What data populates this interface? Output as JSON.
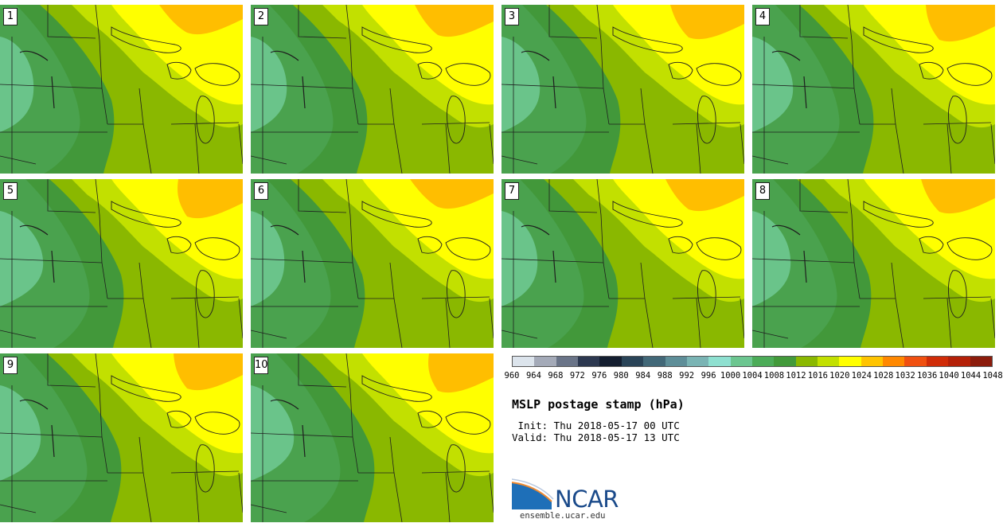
{
  "panels": [
    "1",
    "2",
    "3",
    "4",
    "5",
    "6",
    "7",
    "8",
    "9",
    "10"
  ],
  "colorbar": {
    "levels": [
      "960",
      "964",
      "968",
      "972",
      "976",
      "980",
      "984",
      "988",
      "992",
      "996",
      "1000",
      "1004",
      "1008",
      "1012",
      "1016",
      "1020",
      "1024",
      "1028",
      "1032",
      "1036",
      "1040",
      "1044",
      "1048"
    ],
    "colors": [
      "#dce4ec",
      "#a4aab8",
      "#6a7488",
      "#2c3850",
      "#141e30",
      "#2a4458",
      "#426878",
      "#5e8e98",
      "#7ab4b4",
      "#8ee0d0",
      "#6cc690",
      "#4cac58",
      "#429a3a",
      "#8ab800",
      "#c2e000",
      "#ffff00",
      "#ffc400",
      "#ff8800",
      "#f05010",
      "#d02c08",
      "#b42008",
      "#8c1c0c"
    ]
  },
  "map_colors": {
    "p1004": "#6ac48a",
    "p1008": "#4aa24e",
    "p1012": "#42983a",
    "p1016": "#8ab800",
    "p1020": "#c2e000",
    "p1024": "#ffff00",
    "p1028": "#ffbe00",
    "outline": "#1e1e1e"
  },
  "title": "MSLP postage stamp (hPa)",
  "init": " Init: Thu 2018-05-17 00 UTC",
  "valid": "Valid: Thu 2018-05-17 13 UTC",
  "logo": {
    "name": "NCAR",
    "url": "ensemble.ucar.edu"
  }
}
